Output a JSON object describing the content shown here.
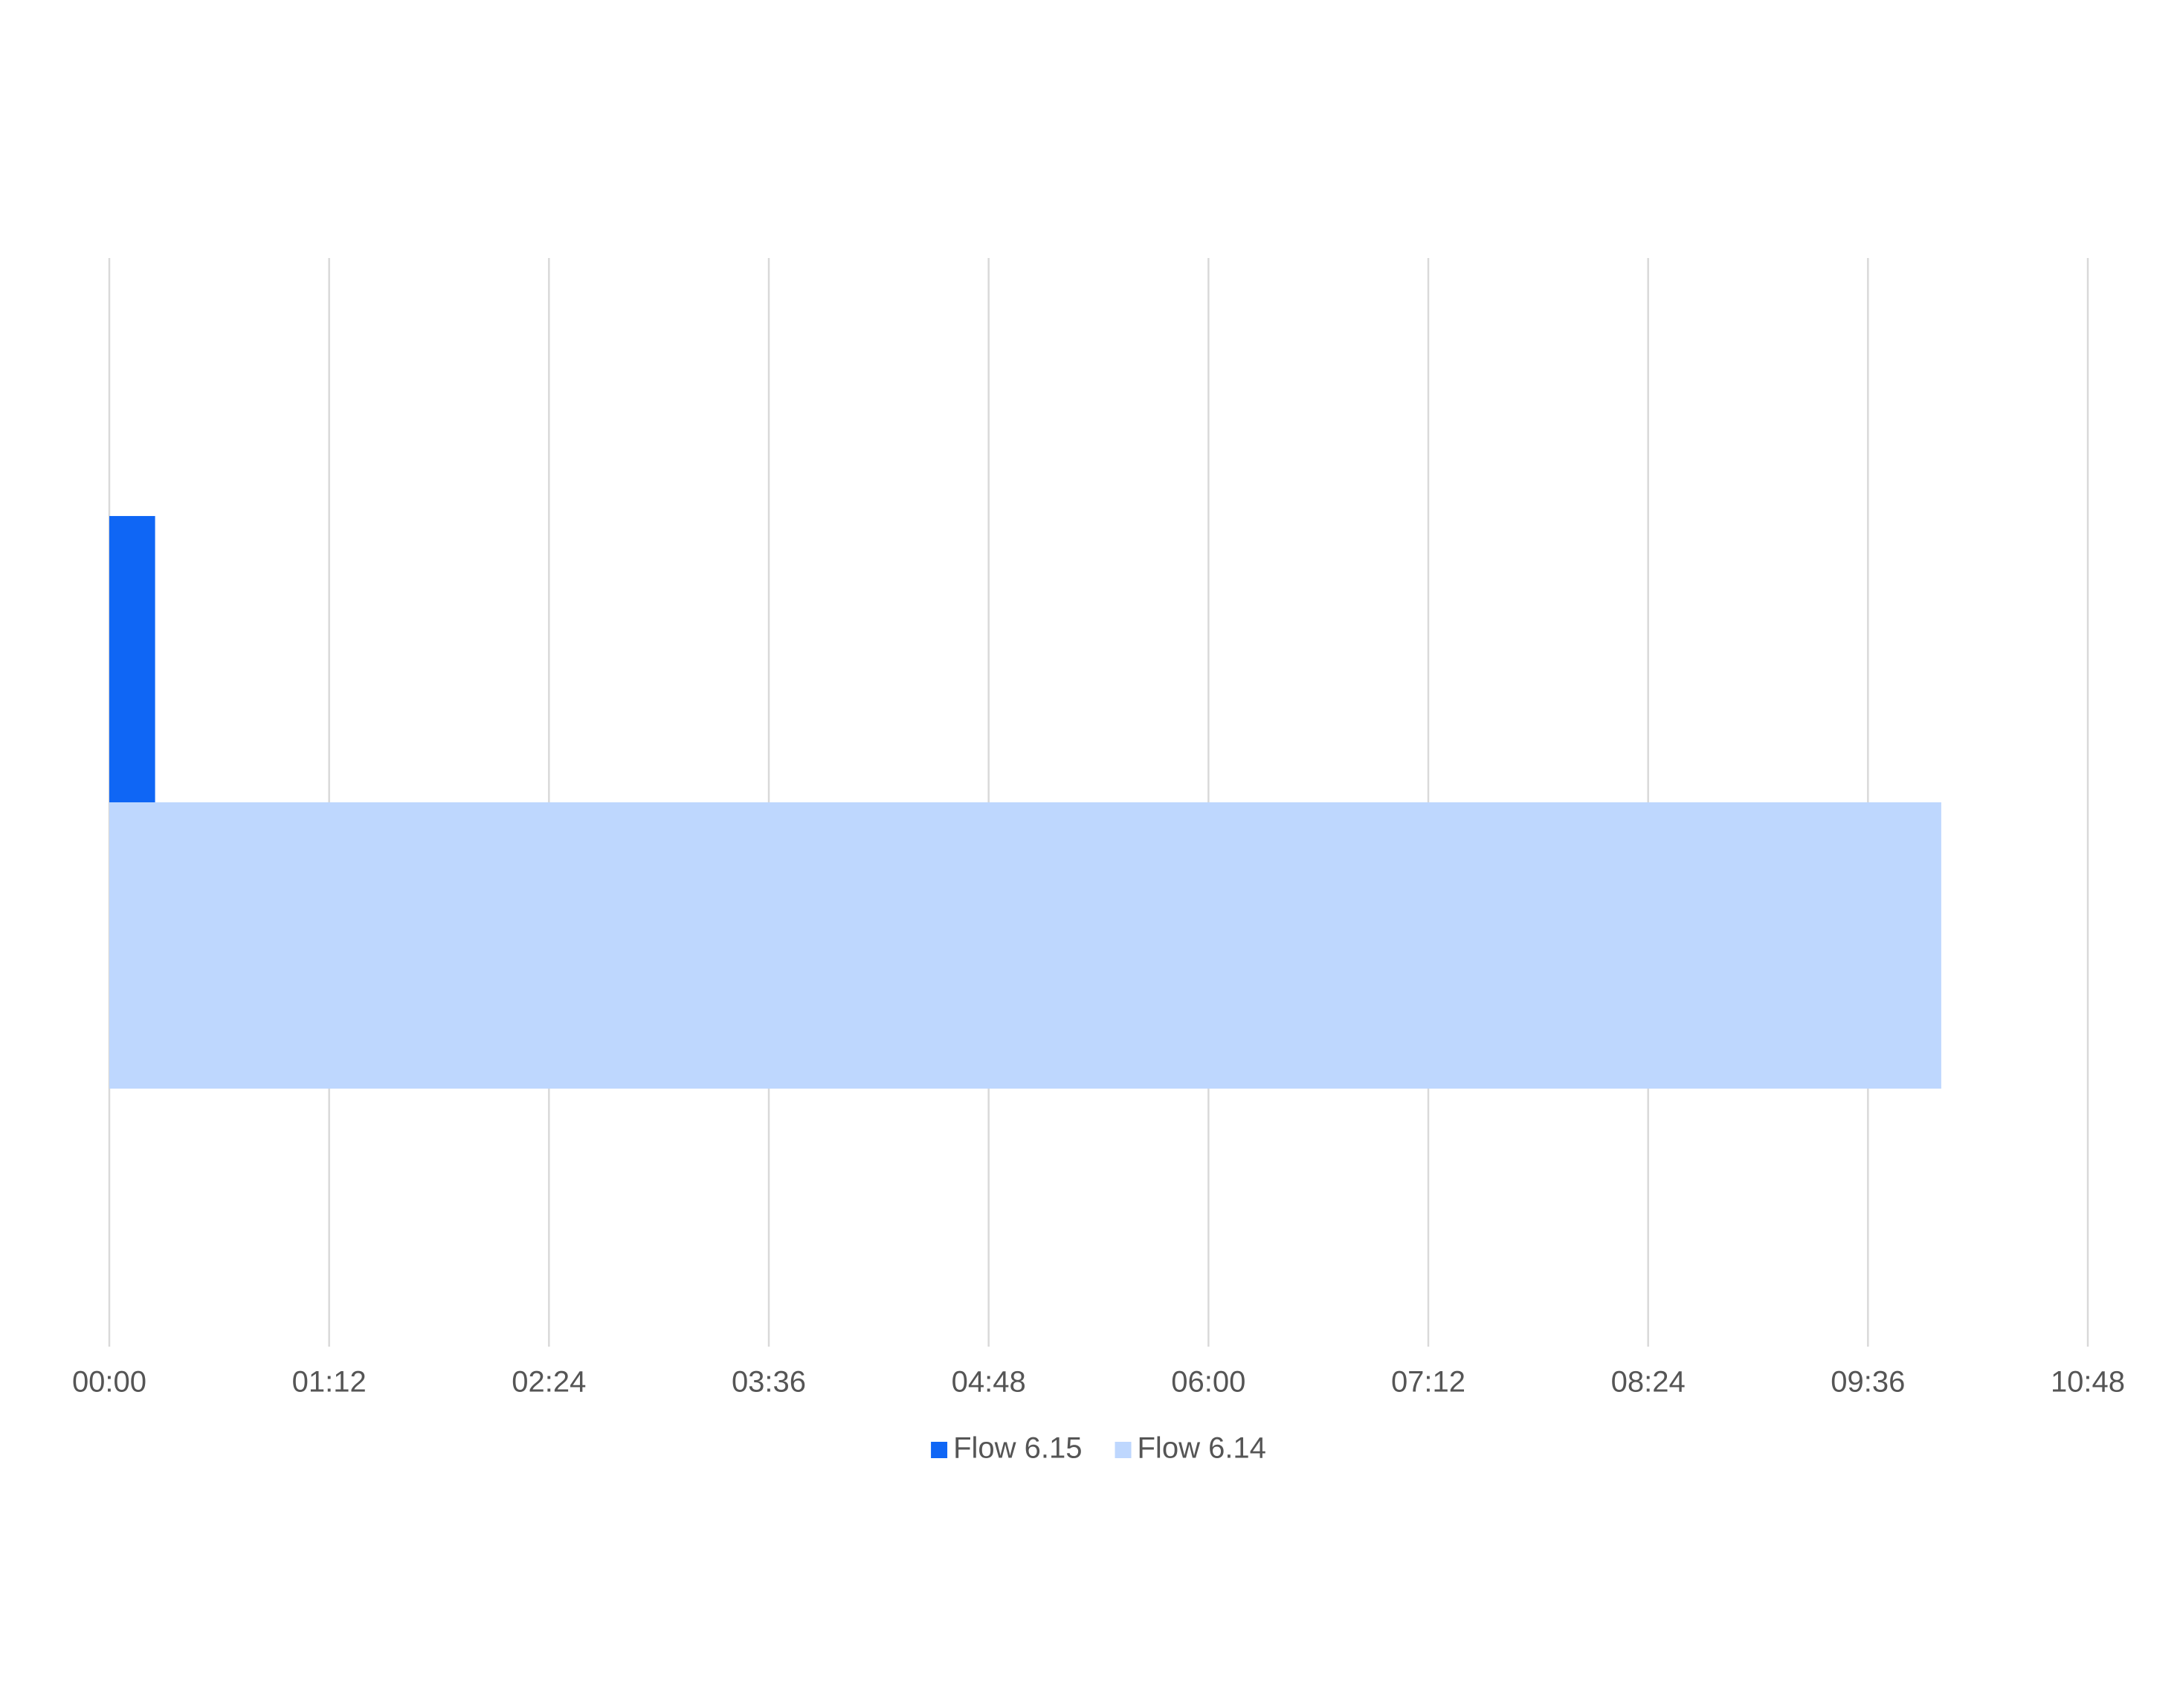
{
  "chart_data": {
    "type": "hbar",
    "categories": [
      null
    ],
    "series": [
      {
        "name": "Flow 6.15",
        "color": "#0f66f5",
        "values": [
          15
        ]
      },
      {
        "name": "Flow 6.14",
        "color": "#bed7fe",
        "values": [
          600
        ]
      }
    ],
    "xlim": [
      0,
      648
    ],
    "xticks": [
      {
        "value": 0,
        "label": "00:00"
      },
      {
        "value": 72,
        "label": "01:12"
      },
      {
        "value": 144,
        "label": "02:24"
      },
      {
        "value": 216,
        "label": "03:36"
      },
      {
        "value": 288,
        "label": "04:48"
      },
      {
        "value": 360,
        "label": "06:00"
      },
      {
        "value": 432,
        "label": "07:12"
      },
      {
        "value": 504,
        "label": "08:24"
      },
      {
        "value": 576,
        "label": "09:36"
      },
      {
        "value": 648,
        "label": "10:48"
      }
    ],
    "grid": true,
    "legend": "bottom"
  }
}
